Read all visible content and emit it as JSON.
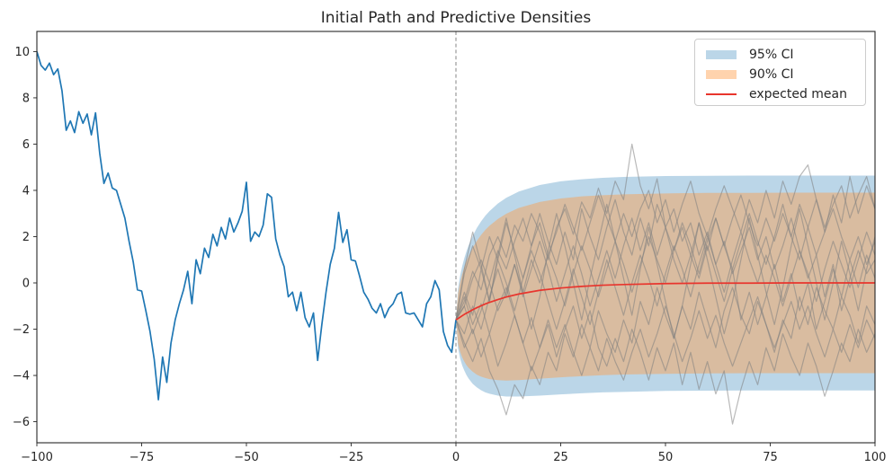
{
  "title": "Initial Path and Predictive Densities",
  "colors": {
    "initial_path_line": "#1f77b4",
    "ci95_fill": "rgba(31,119,180,0.30)",
    "ci90_fill": "rgba(255,158,74,0.45)",
    "mean_line": "#e8352d",
    "sample_path_line": "rgba(128,128,128,0.55)",
    "vline": "#999999",
    "spine": "#262626",
    "tick_label": "#262626",
    "title_text": "#262626",
    "legend_border": "#cccccc"
  },
  "axes": {
    "xlim": [
      -100,
      100
    ],
    "ylim": [
      -6.91,
      10.87
    ],
    "x_ticks": [
      {
        "value": -100,
        "label": "−100"
      },
      {
        "value": -75,
        "label": "−75"
      },
      {
        "value": -50,
        "label": "−50"
      },
      {
        "value": -25,
        "label": "−25"
      },
      {
        "value": 0,
        "label": "0"
      },
      {
        "value": 25,
        "label": "25"
      },
      {
        "value": 50,
        "label": "50"
      },
      {
        "value": 75,
        "label": "75"
      },
      {
        "value": 100,
        "label": "100"
      }
    ],
    "y_ticks": [
      {
        "value": 10,
        "label": "10"
      },
      {
        "value": 8,
        "label": "8"
      },
      {
        "value": 6,
        "label": "6"
      },
      {
        "value": 4,
        "label": "4"
      },
      {
        "value": 2,
        "label": "2"
      },
      {
        "value": 0,
        "label": "0"
      },
      {
        "value": -2,
        "label": "−2"
      },
      {
        "value": -4,
        "label": "−4"
      },
      {
        "value": -6,
        "label": "−6"
      }
    ],
    "grid": false
  },
  "legend": {
    "position": "upper right",
    "items": [
      {
        "label": "95% CI",
        "type": "patch",
        "color": "rgba(31,119,180,0.30)"
      },
      {
        "label": "90% CI",
        "type": "patch",
        "color": "rgba(255,158,74,0.45)"
      },
      {
        "label": "expected mean",
        "type": "line",
        "color": "#e8352d"
      }
    ]
  },
  "chart_data": {
    "type": "line",
    "title": "Initial Path and Predictive Densities",
    "xlabel": "",
    "ylabel": "",
    "vline_x": 0,
    "initial_path": {
      "name": "initial path",
      "x_start": -100,
      "x_step": 1,
      "values": [
        10.0,
        9.4,
        9.2,
        9.5,
        9.0,
        9.25,
        8.3,
        6.6,
        7.0,
        6.5,
        7.4,
        6.9,
        7.3,
        6.4,
        7.35,
        5.6,
        4.3,
        4.75,
        4.1,
        4.0,
        3.4,
        2.8,
        1.8,
        0.9,
        -0.3,
        -0.35,
        -1.2,
        -2.1,
        -3.3,
        -5.05,
        -3.2,
        -4.3,
        -2.6,
        -1.6,
        -0.9,
        -0.3,
        0.5,
        -0.9,
        1.0,
        0.4,
        1.5,
        1.1,
        2.1,
        1.6,
        2.4,
        1.9,
        2.8,
        2.2,
        2.6,
        3.1,
        4.35,
        1.8,
        2.2,
        2.0,
        2.5,
        3.85,
        3.7,
        1.9,
        1.2,
        0.7,
        -0.6,
        -0.4,
        -1.2,
        -0.4,
        -1.5,
        -1.9,
        -1.3,
        -3.35,
        -1.8,
        -0.4,
        0.8,
        1.5,
        3.05,
        1.75,
        2.3,
        1.0,
        0.95,
        0.3,
        -0.4,
        -0.7,
        -1.1,
        -1.3,
        -0.9,
        -1.5,
        -1.1,
        -0.9,
        -0.5,
        -0.4,
        -1.3,
        -1.35,
        -1.3,
        -1.6,
        -1.9,
        -0.9,
        -0.6,
        0.1,
        -0.3,
        -2.1,
        -2.7,
        -3.0,
        -1.6
      ]
    },
    "forecast": {
      "x": [
        0,
        0.5,
        1,
        1.5,
        2,
        2.5,
        3,
        4,
        5,
        6,
        7,
        8,
        10,
        12,
        15,
        20,
        25,
        30,
        35,
        40,
        50,
        60,
        70,
        80,
        90,
        100
      ],
      "mean": [
        -1.6,
        -1.54,
        -1.48,
        -1.42,
        -1.36,
        -1.31,
        -1.26,
        -1.16,
        -1.07,
        -0.99,
        -0.91,
        -0.84,
        -0.72,
        -0.61,
        -0.48,
        -0.32,
        -0.22,
        -0.15,
        -0.1,
        -0.07,
        -0.03,
        -0.01,
        -0.01,
        0.0,
        0.0,
        0.0
      ],
      "ci95_upper": [
        -1.6,
        -0.25,
        0.31,
        0.73,
        1.07,
        1.36,
        1.61,
        2.03,
        2.38,
        2.66,
        2.9,
        3.1,
        3.43,
        3.68,
        3.95,
        4.23,
        4.39,
        4.48,
        4.54,
        4.58,
        4.62,
        4.63,
        4.64,
        4.64,
        4.64,
        4.64
      ],
      "ci95_lower": [
        -1.6,
        -2.83,
        -3.26,
        -3.57,
        -3.79,
        -3.98,
        -4.13,
        -4.36,
        -4.52,
        -4.64,
        -4.73,
        -4.79,
        -4.87,
        -4.91,
        -4.91,
        -4.87,
        -4.82,
        -4.77,
        -4.73,
        -4.71,
        -4.67,
        -4.66,
        -4.65,
        -4.65,
        -4.65,
        -4.65
      ],
      "ci90_upper": [
        -1.6,
        -0.46,
        0.02,
        0.38,
        0.68,
        0.93,
        1.15,
        1.52,
        1.82,
        2.07,
        2.29,
        2.47,
        2.76,
        2.99,
        3.24,
        3.5,
        3.65,
        3.74,
        3.79,
        3.83,
        3.87,
        3.89,
        3.89,
        3.9,
        3.9,
        3.9
      ],
      "ci90_lower": [
        -1.6,
        -2.62,
        -2.98,
        -3.22,
        -3.4,
        -3.55,
        -3.67,
        -3.84,
        -3.97,
        -4.05,
        -4.11,
        -4.16,
        -4.2,
        -4.22,
        -4.2,
        -4.14,
        -4.08,
        -4.03,
        -3.99,
        -3.96,
        -3.93,
        -3.91,
        -3.9,
        -3.9,
        -3.9,
        -3.9
      ]
    },
    "sample_paths": {
      "x_start": 0,
      "x_step": 2,
      "paths": [
        [
          -1.6,
          -0.8,
          0.5,
          -0.3,
          1.2,
          2.0,
          1.1,
          2.5,
          1.8,
          3.0,
          2.2,
          1.0,
          2.4,
          3.2,
          2.1,
          3.5,
          2.8,
          4.1,
          3.0,
          4.4,
          3.6,
          6.0,
          4.2,
          3.2,
          4.5,
          2.4,
          3.2,
          1.8,
          2.6,
          1.2,
          2.2,
          0.8,
          1.8,
          0.4,
          1.4,
          2.4,
          1.0,
          2.0,
          0.6,
          1.6,
          2.8,
          1.4,
          0.2,
          1.2,
          -0.6,
          0.8,
          -1.2,
          0.2,
          1.4,
          0.4,
          1.0
        ],
        [
          -1.6,
          -2.6,
          -3.4,
          -2.4,
          -3.8,
          -4.6,
          -5.7,
          -4.4,
          -5.0,
          -3.6,
          -4.4,
          -3.0,
          -3.8,
          -2.2,
          -3.2,
          -1.8,
          -2.8,
          -1.2,
          -2.2,
          -3.0,
          -1.6,
          -2.6,
          -0.8,
          -1.8,
          -0.2,
          -1.4,
          -2.4,
          -1.0,
          -2.0,
          -0.4,
          -1.6,
          -2.8,
          -1.2,
          -0.2,
          -1.4,
          -2.2,
          -0.8,
          -1.8,
          -3.0,
          -1.6,
          -2.4,
          -0.6,
          -1.8,
          -0.2,
          -1.2,
          -2.0,
          -0.6,
          -1.4,
          -2.6,
          -1.0,
          -1.8
        ],
        [
          -1.6,
          -0.6,
          -1.8,
          -0.9,
          -2.2,
          -1.0,
          -0.2,
          -1.4,
          -2.6,
          -1.5,
          -2.8,
          -1.8,
          -3.2,
          -2.0,
          -1.0,
          -2.4,
          -1.2,
          -2.8,
          -3.6,
          -2.4,
          -3.4,
          -2.0,
          -3.0,
          -4.2,
          -2.8,
          -3.8,
          -2.6,
          -4.4,
          -3.0,
          -4.6,
          -3.4,
          -4.8,
          -3.8,
          -6.1,
          -4.6,
          -3.4,
          -4.4,
          -2.8,
          -3.8,
          -2.2,
          -3.2,
          -4.0,
          -2.6,
          -3.6,
          -4.9,
          -3.8,
          -2.6,
          -3.4,
          -2.0,
          -3.0,
          -2.2
        ],
        [
          -1.6,
          -1.0,
          0.2,
          1.0,
          0.0,
          1.4,
          0.6,
          1.8,
          2.8,
          1.6,
          2.6,
          1.2,
          2.2,
          3.4,
          2.4,
          1.4,
          2.6,
          3.8,
          2.8,
          1.8,
          3.0,
          2.0,
          3.2,
          4.0,
          2.6,
          3.6,
          2.2,
          3.4,
          4.4,
          3.0,
          2.0,
          3.2,
          4.2,
          3.2,
          2.2,
          3.6,
          2.6,
          4.0,
          2.8,
          4.4,
          3.4,
          4.6,
          5.1,
          3.6,
          2.4,
          3.4,
          4.2,
          2.8,
          3.8,
          4.6,
          3.2
        ],
        [
          -1.6,
          -2.2,
          -1.0,
          -2.0,
          -0.6,
          0.6,
          -0.6,
          0.8,
          -0.4,
          1.0,
          0.0,
          1.2,
          0.2,
          -1.0,
          0.4,
          1.6,
          0.6,
          -0.6,
          0.6,
          1.8,
          0.8,
          -0.4,
          0.8,
          2.0,
          1.0,
          0.0,
          1.4,
          2.4,
          1.2,
          0.2,
          1.6,
          0.4,
          -0.8,
          0.6,
          -1.6,
          -0.4,
          -1.8,
          -0.6,
          0.8,
          -0.8,
          0.4,
          -1.2,
          0.0,
          -2.0,
          -0.8,
          0.6,
          -0.6,
          1.0,
          -0.2,
          1.2,
          0.2
        ],
        [
          -1.6,
          0.4,
          1.6,
          0.6,
          2.0,
          1.0,
          2.6,
          1.4,
          0.2,
          1.6,
          3.0,
          1.8,
          0.8,
          2.2,
          1.0,
          3.2,
          2.0,
          1.0,
          2.4,
          3.6,
          2.2,
          1.2,
          2.8,
          1.6,
          3.4,
          2.4,
          1.4,
          2.6,
          1.6,
          0.4,
          1.8,
          2.8,
          1.6,
          2.8,
          3.8,
          2.6,
          1.6,
          2.8,
          1.8,
          3.0,
          2.0,
          3.4,
          2.4,
          1.2,
          2.2,
          3.2,
          2.0,
          1.0,
          2.0,
          0.8,
          1.8
        ],
        [
          -1.6,
          -2.8,
          -2.0,
          -3.2,
          -2.2,
          -3.6,
          -2.6,
          -1.4,
          -2.6,
          -3.8,
          -2.8,
          -1.6,
          -2.8,
          -1.8,
          -3.0,
          -4.0,
          -2.8,
          -3.8,
          -2.4,
          -3.4,
          -4.2,
          -3.0,
          -2.0,
          -3.2,
          -2.2,
          -1.0,
          -2.2,
          -3.4,
          -2.4,
          -1.2,
          -2.4,
          -1.4,
          -2.6,
          -3.6,
          -2.6,
          -1.6,
          -0.6,
          -1.8,
          -2.8,
          -1.8,
          -0.8,
          -2.0,
          -1.0,
          -2.2,
          -3.2,
          -2.0,
          -3.0,
          -1.8,
          -2.8,
          -1.6,
          -2.4
        ],
        [
          -1.6,
          -0.4,
          -1.4,
          0.6,
          -0.8,
          1.0,
          0.0,
          -1.2,
          0.2,
          1.4,
          0.4,
          -0.8,
          -2.0,
          -0.8,
          0.6,
          -0.6,
          -1.8,
          -0.4,
          1.0,
          -0.2,
          -1.4,
          0.0,
          1.2,
          0.2,
          -1.0,
          0.4,
          1.6,
          0.6,
          -0.6,
          0.8,
          2.0,
          0.8,
          -0.4,
          1.0,
          2.2,
          1.0,
          0.0,
          1.2,
          0.2,
          -1.0,
          0.2,
          1.4,
          0.4,
          -0.8,
          0.6,
          1.8,
          0.8,
          -0.2,
          1.0,
          2.2,
          1.2
        ],
        [
          -1.6,
          0.6,
          2.2,
          0.8,
          -0.8,
          1.2,
          2.8,
          1.2,
          -0.4,
          -2.0,
          -0.6,
          1.4,
          3.0,
          1.6,
          0.0,
          -1.6,
          0.2,
          1.8,
          3.4,
          1.8,
          0.2,
          -1.4,
          0.6,
          2.4,
          0.8,
          -0.8,
          -2.4,
          -1.0,
          0.8,
          2.6,
          1.0,
          -0.6,
          -2.2,
          -0.8,
          1.0,
          2.8,
          1.2,
          -0.4,
          -1.8,
          -0.2,
          1.6,
          3.2,
          1.6,
          0.0,
          -1.6,
          0.0,
          1.8,
          0.4,
          -1.2,
          0.6,
          2.0
        ],
        [
          -1.6,
          -1.0,
          -2.2,
          -1.2,
          0.0,
          -1.2,
          -0.4,
          0.8,
          -0.6,
          0.6,
          1.8,
          0.6,
          -0.8,
          0.4,
          1.6,
          0.4,
          -1.0,
          0.2,
          1.4,
          0.2,
          1.6,
          2.8,
          1.4,
          2.6,
          1.2,
          2.4,
          1.0,
          0.0,
          1.2,
          2.6,
          1.4,
          2.8,
          1.6,
          0.6,
          1.8,
          3.0,
          1.8,
          0.8,
          2.0,
          3.4,
          2.0,
          1.0,
          2.4,
          3.6,
          2.2,
          3.8,
          2.6,
          4.6,
          3.0,
          4.2,
          3.2
        ]
      ]
    }
  }
}
